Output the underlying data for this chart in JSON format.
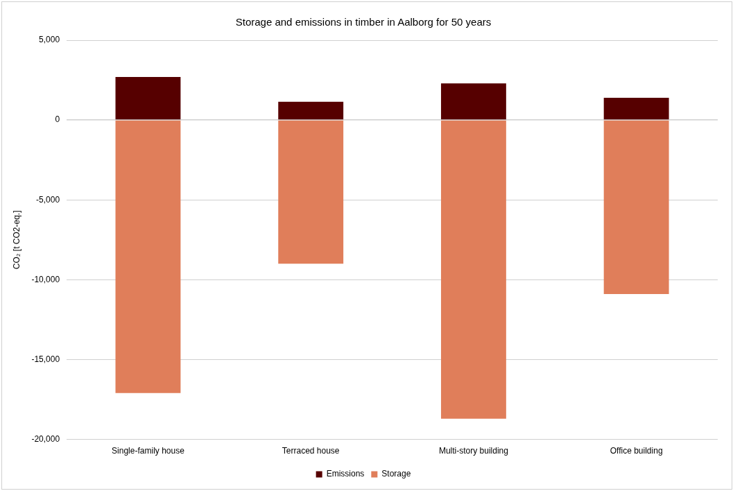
{
  "chart_data": {
    "type": "bar",
    "title": "Storage and emissions in timber in Aalborg for 50 years",
    "ylabel": "CO₂ [t CO2-eq.]",
    "categories": [
      "Single-family house",
      "Terraced house",
      "Multi-story building",
      "Office building"
    ],
    "stacked": true,
    "series": [
      {
        "name": "Emissions",
        "color": "#560000",
        "values": [
          2700,
          1150,
          2300,
          1400
        ]
      },
      {
        "name": "Storage",
        "color": "#e07e5a",
        "values": [
          -17100,
          -9000,
          -18700,
          -10900
        ]
      }
    ],
    "ylim": [
      -20000,
      5000
    ],
    "yticks": [
      {
        "value": -20000,
        "label": "-20,000"
      },
      {
        "value": -15000,
        "label": "-15,000"
      },
      {
        "value": -10000,
        "label": "-10,000"
      },
      {
        "value": -5000,
        "label": "-5,000"
      },
      {
        "value": 0,
        "label": "0"
      },
      {
        "value": 5000,
        "label": "5,000"
      }
    ],
    "grid": "y",
    "legend": "bottom"
  }
}
